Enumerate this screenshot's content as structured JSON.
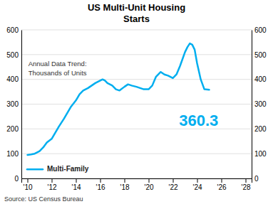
{
  "chart_data": {
    "type": "line",
    "title": "US Multi-Unit Housing\nStarts",
    "subtitle": "Annual Data Trend:\nThousands of Units",
    "annotation": "360.3",
    "source": "Source: US Census Bureau",
    "x": [
      2010,
      2010.3,
      2010.6,
      2011,
      2011.3,
      2011.6,
      2012,
      2012.3,
      2012.6,
      2013,
      2013.3,
      2013.6,
      2014,
      2014.3,
      2014.6,
      2015,
      2015.3,
      2015.6,
      2016,
      2016.2,
      2016.4,
      2016.6,
      2016.8,
      2017,
      2017.3,
      2017.6,
      2018,
      2018.3,
      2018.6,
      2019,
      2019.3,
      2019.6,
      2020,
      2020.3,
      2020.6,
      2021,
      2021.3,
      2021.6,
      2022,
      2022.3,
      2022.6,
      2023,
      2023.2,
      2023.4,
      2023.6,
      2023.8,
      2024,
      2024.3,
      2024.6,
      2025
    ],
    "series": [
      {
        "name": "Multi-Family",
        "color": "#00AEEF",
        "values": [
          95,
          97,
          100,
          110,
          125,
          145,
          160,
          185,
          210,
          240,
          265,
          290,
          315,
          340,
          355,
          365,
          375,
          385,
          395,
          400,
          395,
          385,
          380,
          375,
          360,
          355,
          370,
          380,
          375,
          370,
          365,
          360,
          360,
          375,
          410,
          430,
          420,
          415,
          405,
          420,
          455,
          510,
          530,
          545,
          540,
          520,
          465,
          400,
          360,
          358
        ]
      }
    ],
    "xlim": [
      2009.5,
      2028.5
    ],
    "xticks": [
      {
        "value": 2010,
        "label": "'10"
      },
      {
        "value": 2012,
        "label": "'12"
      },
      {
        "value": 2014,
        "label": "'14"
      },
      {
        "value": 2016,
        "label": "'16"
      },
      {
        "value": 2018,
        "label": "'18"
      },
      {
        "value": 2020,
        "label": "'20"
      },
      {
        "value": 2022,
        "label": "'22"
      },
      {
        "value": 2024,
        "label": "'24"
      },
      {
        "value": 2026,
        "label": "'26"
      },
      {
        "value": 2028,
        "label": "'28"
      }
    ],
    "ylim": [
      0,
      600
    ],
    "yticks": [
      0,
      100,
      200,
      300,
      400,
      500,
      600
    ],
    "y2lim": [
      0,
      600
    ],
    "y2ticks": [
      0,
      100,
      200,
      300,
      400,
      500,
      600
    ],
    "grid": true,
    "legend": "lower left"
  }
}
